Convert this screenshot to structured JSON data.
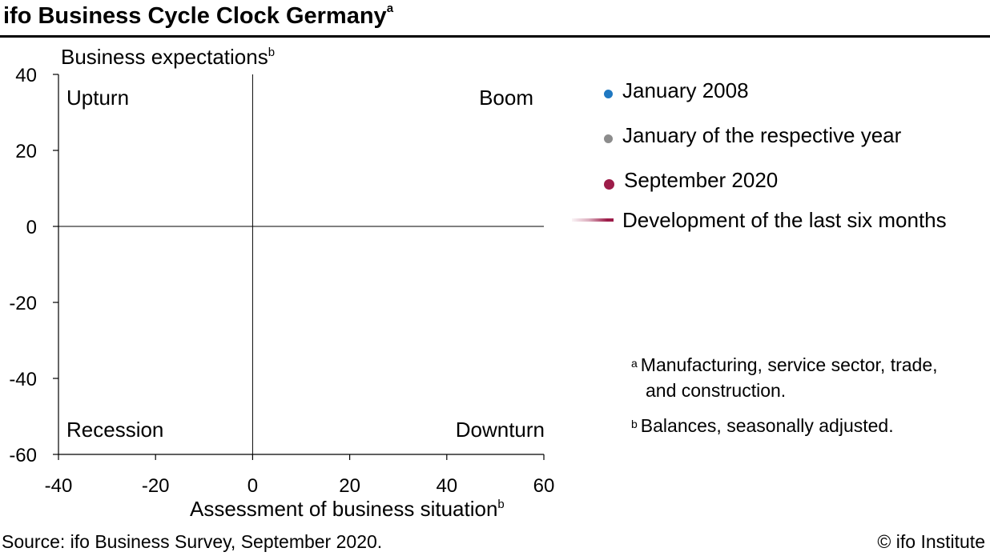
{
  "header": {
    "title": "ifo Business Cycle Clock Germany",
    "title_sup": "a"
  },
  "chart_data": {
    "type": "scatter",
    "title": "ifo Business Cycle Clock Germany",
    "xlabel": "Assessment of business situation",
    "xlabel_sup": "b",
    "ylabel": "Business expectations",
    "ylabel_sup": "b",
    "xlim": [
      -40,
      60
    ],
    "ylim": [
      -60,
      40
    ],
    "x_ticks": [
      -40,
      -20,
      0,
      20,
      40,
      60
    ],
    "y_ticks": [
      40,
      20,
      0,
      -20,
      -40,
      -60
    ],
    "quadrants": {
      "top_left": "Upturn",
      "top_right": "Boom",
      "bottom_left": "Recession",
      "bottom_right": "Downturn"
    },
    "series": [],
    "grid": false,
    "legend_position": "right"
  },
  "legend": {
    "items": [
      {
        "label": "January 2008",
        "color": "#1f78c1",
        "kind": "dot"
      },
      {
        "label": "January of the respective year",
        "color": "#8c8c8c",
        "kind": "dot"
      },
      {
        "label": "September 2020",
        "color": "#9d1c49",
        "kind": "dot"
      },
      {
        "label": "Development of the last six months",
        "color": "#9d1c49",
        "kind": "line"
      }
    ]
  },
  "notes": {
    "a_mark": "a",
    "a_line1": "Manufacturing, service sector, trade,",
    "a_line2": "and construction.",
    "b_mark": "b",
    "b_line1": "Balances, seasonally adjusted."
  },
  "footer": {
    "source": "Source: ifo Business Survey, September 2020.",
    "copyright": "© ifo Institute"
  }
}
